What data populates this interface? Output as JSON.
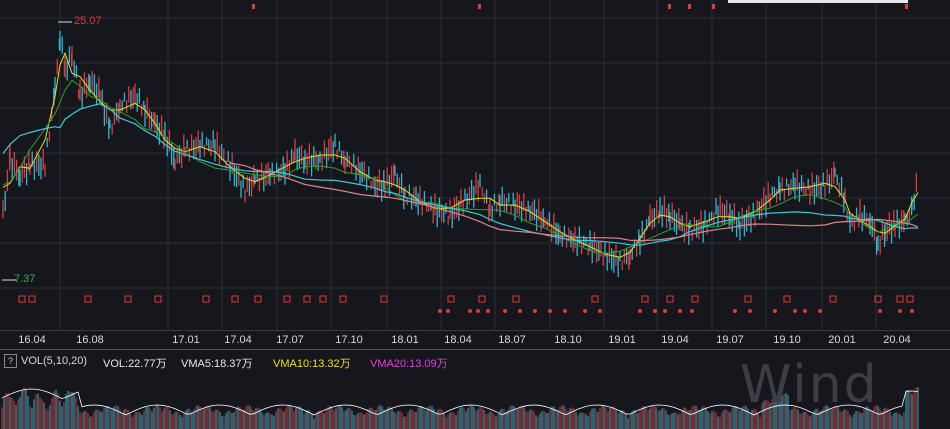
{
  "chart": {
    "max_label": "25.07",
    "min_label": "7.37",
    "date_ticks": [
      "16.04",
      "16.08",
      "17.01",
      "17.04",
      "17.07",
      "17.10",
      "18.01",
      "18.04",
      "18.07",
      "18.10",
      "19.01",
      "19.04",
      "19.07",
      "19.10",
      "20.01",
      "20.04"
    ]
  },
  "volume": {
    "help_icon": "?",
    "indicator": "VOL(5,10,20)",
    "vol": "VOL:22.77万",
    "vma5": "VMA5:18.37万",
    "vma10": "VMA10:13.32万",
    "vma20": "VMA20:13.09万"
  },
  "watermark": "Wind",
  "colors": {
    "background": "#16171c",
    "up": "#e03a3a",
    "down": "#28b8d8",
    "ma_yellow": "#e8e020",
    "ma_green": "#30a030",
    "ma_cyan": "#40c8d8",
    "ma_pink": "#d08888",
    "vma10": "#e8e020",
    "vma20": "#e040e0"
  }
}
